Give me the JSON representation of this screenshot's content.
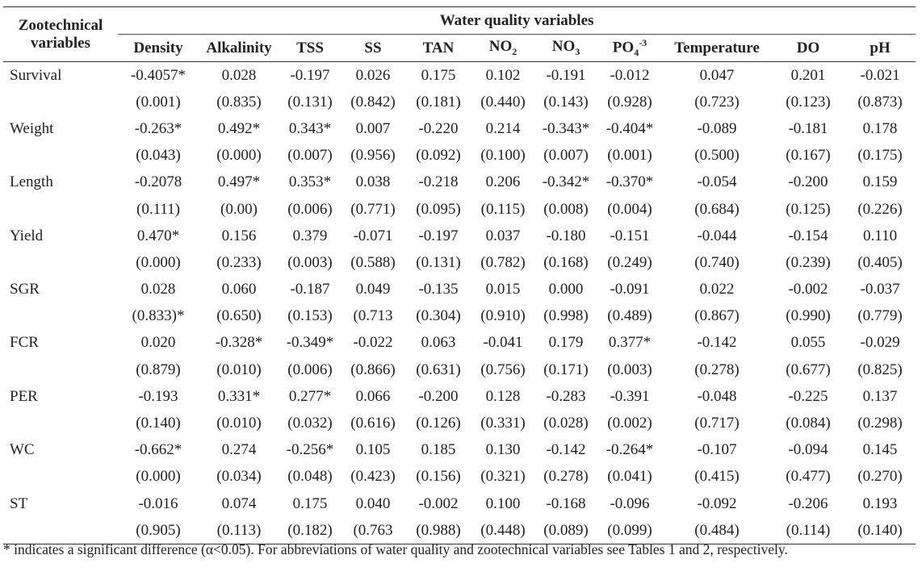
{
  "table": {
    "row_header_title": "Zootechnical variables",
    "group_header": "Water quality variables",
    "columns": [
      {
        "label": "Density",
        "sub": "",
        "sup": ""
      },
      {
        "label": "Alkalinity",
        "sub": "",
        "sup": ""
      },
      {
        "label": "TSS",
        "sub": "",
        "sup": ""
      },
      {
        "label": "SS",
        "sub": "",
        "sup": ""
      },
      {
        "label": "TAN",
        "sub": "",
        "sup": ""
      },
      {
        "label": "NO",
        "sub": "2",
        "sup": ""
      },
      {
        "label": "NO",
        "sub": "3",
        "sup": ""
      },
      {
        "label": "PO",
        "sub": "4",
        "sup": "-3"
      },
      {
        "label": "Temperature",
        "sub": "",
        "sup": ""
      },
      {
        "label": "DO",
        "sub": "",
        "sup": ""
      },
      {
        "label": "pH",
        "sub": "",
        "sup": ""
      }
    ],
    "rows": [
      {
        "variable": "Survival",
        "r": [
          "-0.4057*",
          "0.028",
          "-0.197",
          "0.026",
          "0.175",
          "0.102",
          "-0.191",
          "-0.012",
          "0.047",
          "0.201",
          "-0.021"
        ],
        "p": [
          "(0.001)",
          "(0.835)",
          "(0.131)",
          "(0.842)",
          "(0.181)",
          "(0.440)",
          "(0.143)",
          "(0.928)",
          "(0.723)",
          "(0.123)",
          "(0.873)"
        ]
      },
      {
        "variable": "Weight",
        "r": [
          "-0.263*",
          "0.492*",
          "0.343*",
          "0.007",
          "-0.220",
          "0.214",
          "-0.343*",
          "-0.404*",
          "-0.089",
          "-0.181",
          "0.178"
        ],
        "p": [
          "(0.043)",
          "(0.000)",
          "(0.007)",
          "(0.956)",
          "(0.092)",
          "(0.100)",
          "(0.007)",
          "(0.001)",
          "(0.500)",
          "(0.167)",
          "(0.175)"
        ]
      },
      {
        "variable": "Length",
        "r": [
          "-0.2078",
          "0.497*",
          "0.353*",
          "0.038",
          "-0.218",
          "0.206",
          "-0.342*",
          "-0.370*",
          "-0.054",
          "-0.200",
          "0.159"
        ],
        "p": [
          "(0.111)",
          "(0.00)",
          "(0.006)",
          "(0.771)",
          "(0.095)",
          "(0.115)",
          "(0.008)",
          "(0.004)",
          "(0.684)",
          "(0.125)",
          "(0.226)"
        ]
      },
      {
        "variable": "Yield",
        "r": [
          "0.470*",
          "0.156",
          "0.379",
          "-0.071",
          "-0.197",
          "0.037",
          "-0.180",
          "-0.151",
          "-0.044",
          "-0.154",
          "0.110"
        ],
        "p": [
          "(0.000)",
          "(0.233)",
          "(0.003)",
          "(0.588)",
          "(0.131)",
          "(0.782)",
          "(0.168)",
          "(0.249)",
          "(0.740)",
          "(0.239)",
          "(0.405)"
        ]
      },
      {
        "variable": "SGR",
        "r": [
          "0.028",
          "0.060",
          "-0.187",
          "0.049",
          "-0.135",
          "0.015",
          "0.000",
          "-0.091",
          "0.022",
          "-0.002",
          "-0.037"
        ],
        "p": [
          "(0.833)*",
          "(0.650)",
          "(0.153)",
          "(0.713",
          "(0.304)",
          "(0.910)",
          "(0.998)",
          "(0.489)",
          "(0.867)",
          "(0.990)",
          "(0.779)"
        ]
      },
      {
        "variable": "FCR",
        "r": [
          "0.020",
          "-0.328*",
          "-0.349*",
          "-0.022",
          "0.063",
          "-0.041",
          "0.179",
          "0.377*",
          "-0.142",
          "0.055",
          "-0.029"
        ],
        "p": [
          "(0.879)",
          "(0.010)",
          "(0.006)",
          "(0.866)",
          "(0.631)",
          "(0.756)",
          "(0.171)",
          "(0.003)",
          "(0.278)",
          "(0.677)",
          "(0.825)"
        ]
      },
      {
        "variable": "PER",
        "r": [
          "-0.193",
          "0.331*",
          "0.277*",
          "0.066",
          "-0.200",
          "0.128",
          "-0.283",
          "-0.391",
          "-0.048",
          "-0.225",
          "0.137"
        ],
        "p": [
          "(0.140)",
          "(0.010)",
          "(0.032)",
          "(0.616)",
          "(0.126)",
          "(0.331)",
          "(0.028)",
          "(0.002)",
          "(0.717)",
          "(0.084)",
          "(0.298)"
        ]
      },
      {
        "variable": "WC",
        "r": [
          "-0.662*",
          "0.274",
          "-0.256*",
          "0.105",
          "0.185",
          "0.130",
          "-0.142",
          "-0.264*",
          "-0.107",
          "-0.094",
          "0.145"
        ],
        "p": [
          "(0.000)",
          "(0.034)",
          "(0.048)",
          "(0.423)",
          "(0.156)",
          "(0.321)",
          "(0.278)",
          "(0.041)",
          "(0.415)",
          "(0.477)",
          "(0.270)"
        ]
      },
      {
        "variable": "ST",
        "r": [
          "-0.016",
          "0.074",
          "0.175",
          "0.040",
          "-0.002",
          "0.100",
          "-0.168",
          "-0.096",
          "-0.092",
          "-0.206",
          "0.193"
        ],
        "p": [
          "(0.905)",
          "(0.113)",
          "(0.182)",
          "(0.763",
          "(0.988)",
          "(0.448)",
          "(0.089)",
          "(0.099)",
          "(0.484)",
          "(0.114)",
          "(0.140)"
        ]
      }
    ]
  },
  "footnote": "* indicates a significant difference (α<0.05). For abbreviations of water quality and zootechnical variables see Tables 1 and 2, respectively."
}
